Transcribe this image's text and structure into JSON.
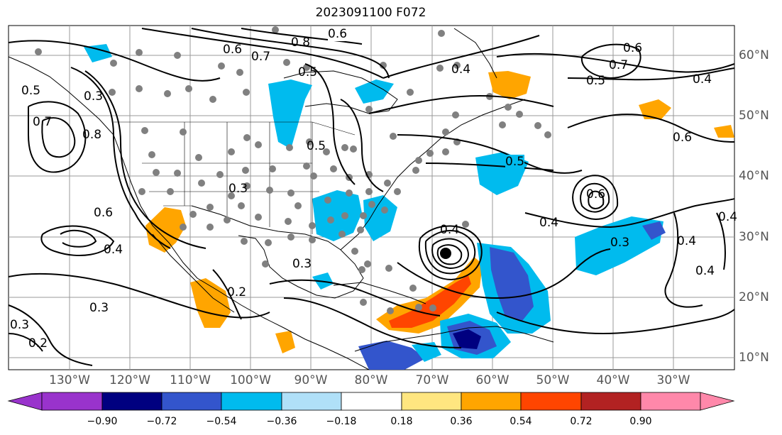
{
  "title": "2023091100 F072",
  "lat_labels": [
    "60°N",
    "50°N",
    "40°N",
    "30°N",
    "20°N",
    "10°N"
  ],
  "lon_labels": [
    "130°W",
    "120°W",
    "110°W",
    "100°W",
    "90°W",
    "80°W",
    "70°W",
    "60°W",
    "50°W",
    "40°W",
    "30°W"
  ],
  "contour_labels": [
    "0.6",
    "0.7",
    "0.8",
    "0.5",
    "0.6",
    "0.4",
    "0.5",
    "0.6",
    "0.7",
    "0.5",
    "0.4",
    "0.5",
    "0.3",
    "0.7",
    "0.8",
    "0.6",
    "0.4",
    "0.3",
    "0.2",
    "0.3",
    "0.3",
    "0.5",
    "0.6",
    "0.4",
    "0.3",
    "0.4",
    "0.4",
    "0.4",
    "0.3",
    "0.2",
    "0.6",
    "0.4"
  ],
  "colorbar": {
    "tick_labels": [
      "−0.90",
      "−0.72",
      "−0.54",
      "−0.36",
      "−0.18",
      "0.18",
      "0.36",
      "0.54",
      "0.72",
      "0.90"
    ],
    "colors": [
      "#9933cc",
      "#000080",
      "#3355cc",
      "#00bbee",
      "#b0e0f8",
      "#ffffff",
      "#ffe680",
      "#ffa500",
      "#ff4500",
      "#b22222",
      "#ff88aa"
    ]
  },
  "legend_colors": {
    "land_outline": "#000000",
    "grid": "#999999",
    "station_dot": "#808080"
  }
}
